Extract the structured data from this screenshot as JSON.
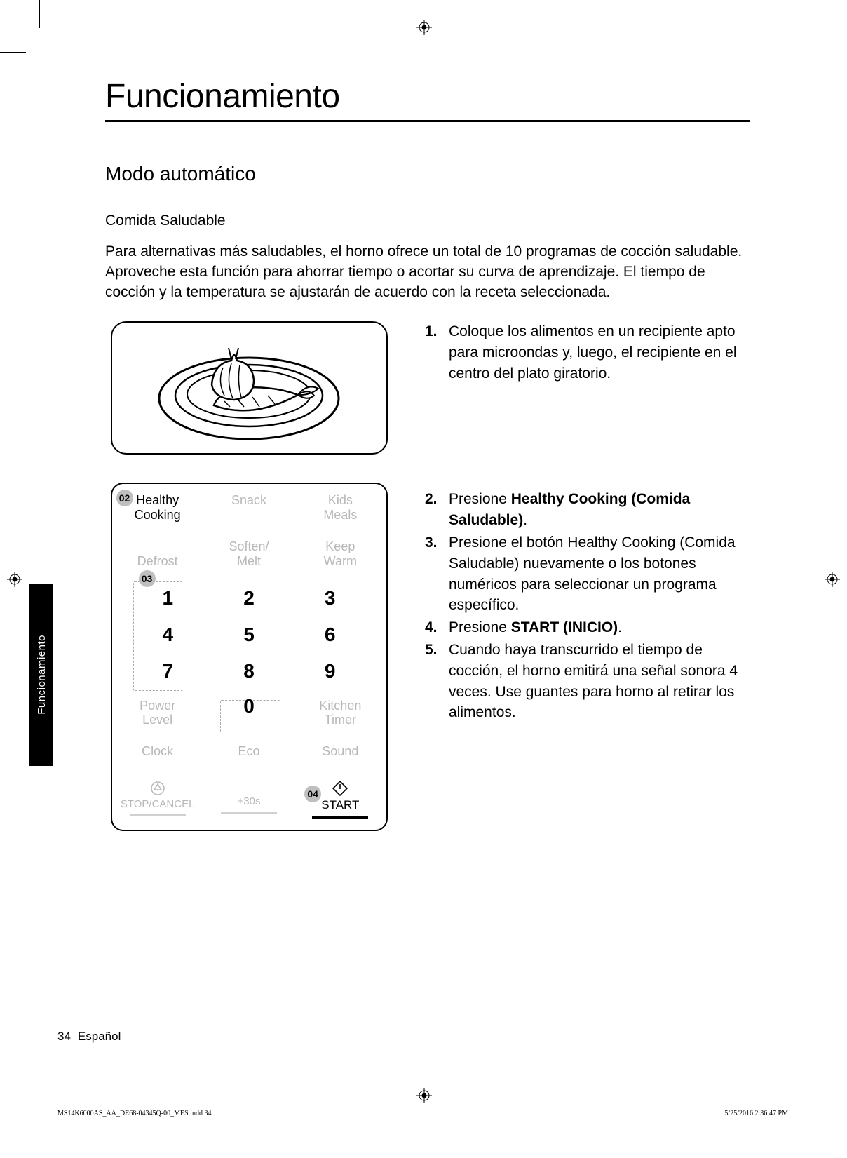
{
  "title": "Funcionamiento",
  "section": "Modo automático",
  "subheading": "Comida Saludable",
  "intro": "Para alternativas más saludables, el horno ofrece un total de 10 programas de cocción saludable. Aproveche esta función para ahorrar tiempo o acortar su curva de aprendizaje. El tiempo de cocción y la temperatura se ajustarán de acuerdo con la receta seleccionada.",
  "panel": {
    "row1": {
      "healthy_line1": "Healthy",
      "healthy_line2": "Cooking",
      "snack": "Snack",
      "kids_line1": "Kids",
      "kids_line2": "Meals"
    },
    "row2": {
      "defrost": "Defrost",
      "soften_line1": "Soften/",
      "soften_line2": "Melt",
      "keep_line1": "Keep",
      "keep_line2": "Warm"
    },
    "keys": [
      "1",
      "2",
      "3",
      "4",
      "5",
      "6",
      "7",
      "8",
      "9"
    ],
    "row_bottom": {
      "power_line1": "Power",
      "power_line2": "Level",
      "zero": "0",
      "kitchen_line1": "Kitchen",
      "kitchen_line2": "Timer"
    },
    "row_last": {
      "clock": "Clock",
      "eco": "Eco",
      "sound": "Sound"
    },
    "action_row": {
      "stop": "STOP/CANCEL",
      "plus30": "+30s",
      "start": "START"
    },
    "badges": {
      "b02": "02",
      "b03": "03",
      "b04": "04"
    }
  },
  "steps": [
    {
      "n": "1.",
      "html": "Coloque los alimentos en un recipiente apto para microondas y, luego, el recipiente en el centro del plato giratorio."
    },
    {
      "n": "2.",
      "html": "Presione <b>Healthy Cooking (Comida Saludable)</b>."
    },
    {
      "n": "3.",
      "html": "Presione el botón Healthy Cooking (Comida Saludable) nuevamente o los botones numéricos para seleccionar un programa específico."
    },
    {
      "n": "4.",
      "html": "Presione <b>START (INICIO)</b>."
    },
    {
      "n": "5.",
      "html": "Cuando haya transcurrido el tiempo de cocción, el horno emitirá una señal sonora 4 veces. Use guantes para horno al retirar los alimentos."
    }
  ],
  "side_tab": "Funcionamiento",
  "footer": {
    "page": "34",
    "lang": "Español"
  },
  "print_footer": {
    "file": "MS14K6000AS_AA_DE68-04345Q-00_MES.indd   34",
    "time": "5/25/2016   2:36:47 PM"
  },
  "colors": {
    "muted": "#b8b8b8",
    "badge_bg": "#bfbfbf",
    "divider": "#d0d0d0",
    "dashed": "#aaaaaa"
  }
}
